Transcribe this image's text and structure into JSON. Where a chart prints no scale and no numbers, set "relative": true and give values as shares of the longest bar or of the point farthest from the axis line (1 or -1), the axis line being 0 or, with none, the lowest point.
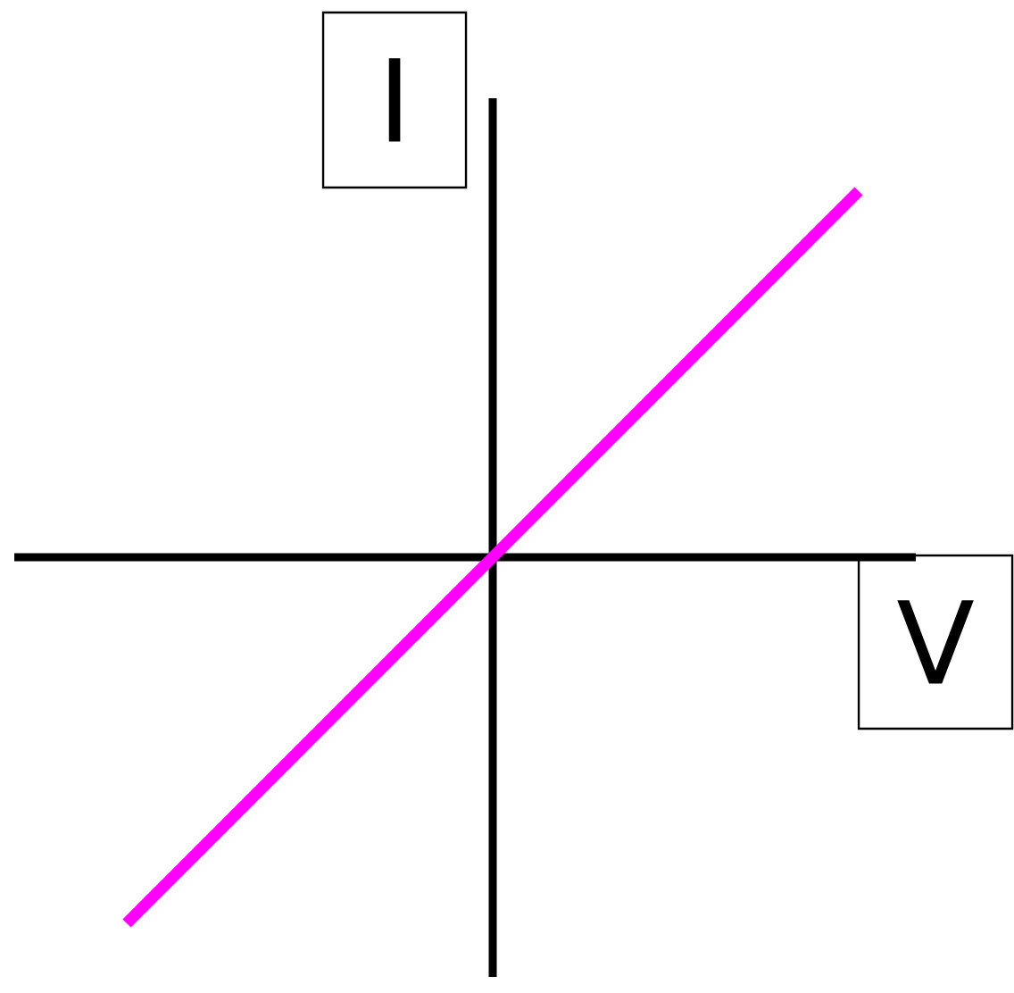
{
  "chart_data": {
    "type": "line",
    "relative": true,
    "xlabel": "V",
    "ylabel": "I",
    "categories": [
      null,
      null,
      null
    ],
    "series": [
      {
        "color": "#ff00ff",
        "values": [
          -1,
          0,
          1
        ]
      }
    ],
    "marker": "none"
  }
}
